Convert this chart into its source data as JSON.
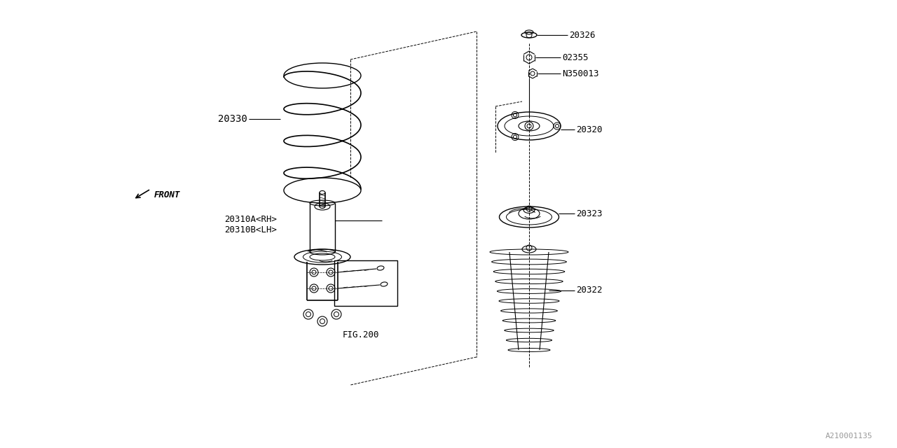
{
  "bg_color": "#ffffff",
  "line_color": "#000000",
  "fig_label": "FIG.200",
  "watermark": "A210001135",
  "front_label": "FRONT"
}
